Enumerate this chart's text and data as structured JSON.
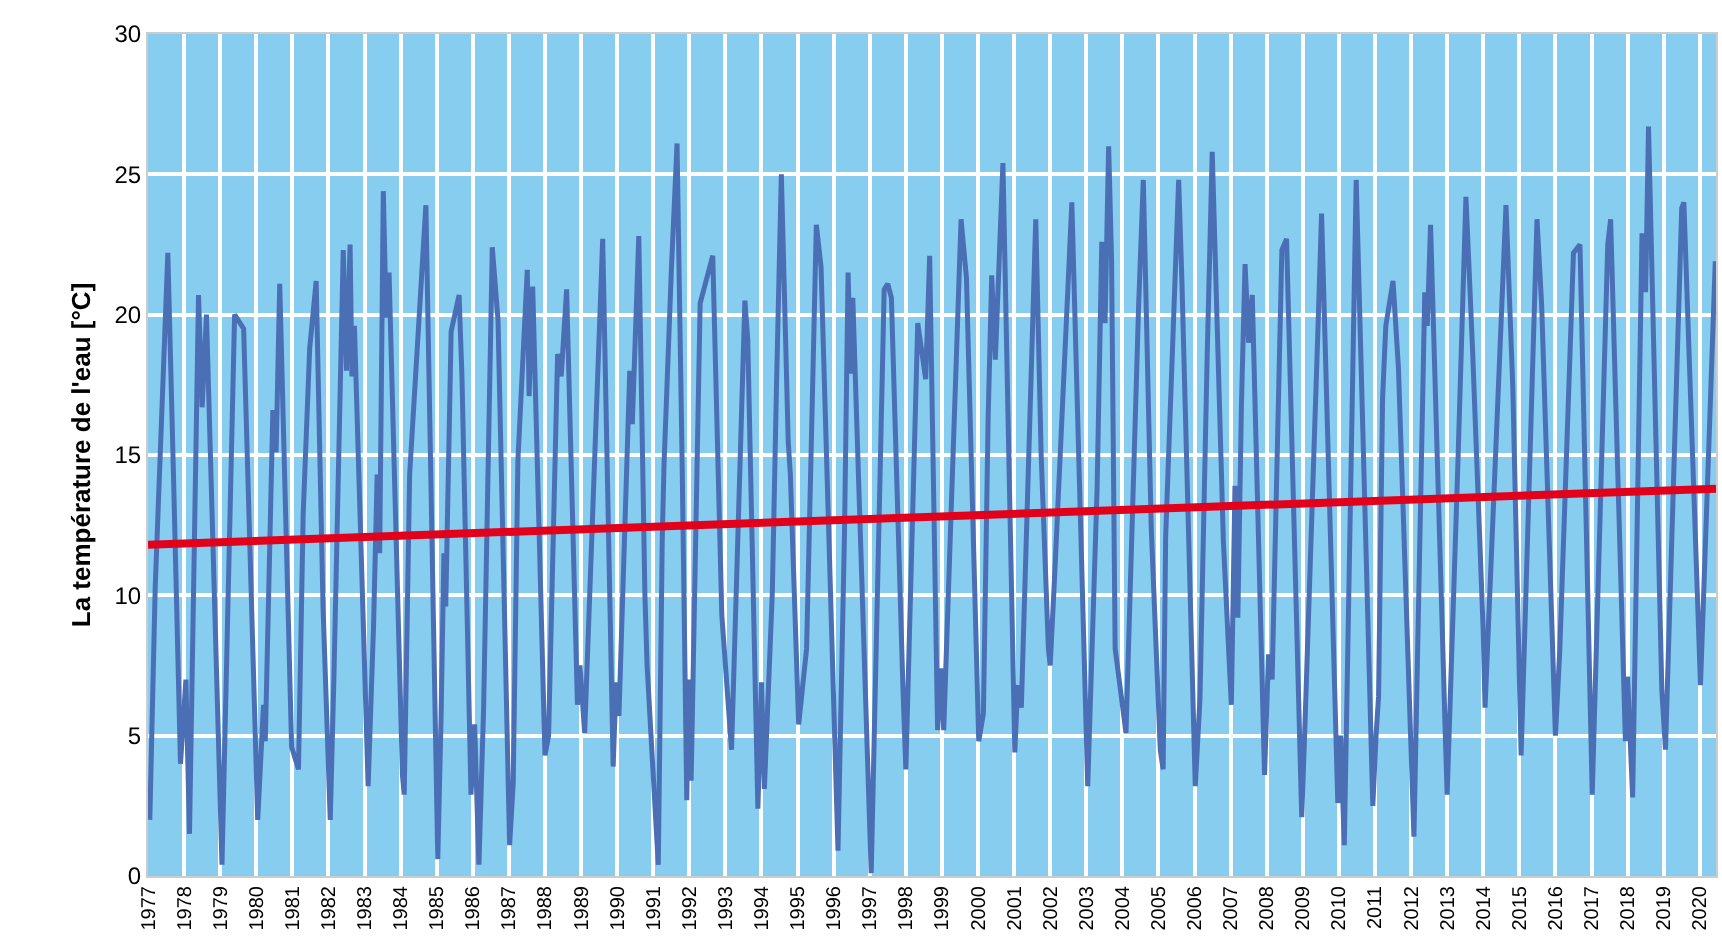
{
  "chart_data": {
    "type": "line",
    "ylabel": "La température de l'eau [°C]",
    "xlim": [
      1977,
      2020.45
    ],
    "xticks": [
      1977,
      1978,
      1979,
      1980,
      1981,
      1982,
      1983,
      1984,
      1985,
      1986,
      1987,
      1988,
      1989,
      1990,
      1991,
      1992,
      1993,
      1994,
      1995,
      1996,
      1997,
      1998,
      1999,
      2000,
      2001,
      2002,
      2003,
      2004,
      2005,
      2006,
      2007,
      2008,
      2009,
      2010,
      2011,
      2012,
      2013,
      2014,
      2015,
      2016,
      2017,
      2018,
      2019,
      2020
    ],
    "ylim": [
      0,
      30
    ],
    "yticks": [
      0,
      5,
      10,
      15,
      20,
      25,
      30
    ],
    "grid": true,
    "marker": "none",
    "line_style": "solid",
    "series": [
      {
        "color": "#4a6fb5",
        "x": [
          1977.05,
          1977.2,
          1977.55,
          1977.7,
          1977.9,
          1978.05,
          1978.15,
          1978.4,
          1978.5,
          1978.62,
          1979.05,
          1979.4,
          1979.65,
          1980.04,
          1980.2,
          1980.25,
          1980.46,
          1980.55,
          1980.65,
          1980.98,
          1981.17,
          1981.3,
          1981.48,
          1981.66,
          1981.85,
          1982.05,
          1982.15,
          1982.41,
          1982.5,
          1982.6,
          1982.65,
          1982.72,
          1983.1,
          1983.25,
          1983.35,
          1983.42,
          1983.52,
          1983.6,
          1983.68,
          1984.05,
          1984.1,
          1984.25,
          1984.7,
          1985.03,
          1985.12,
          1985.2,
          1985.25,
          1985.4,
          1985.62,
          1985.7,
          1985.95,
          1986.05,
          1986.17,
          1986.3,
          1986.54,
          1986.7,
          1987.02,
          1987.12,
          1987.25,
          1987.51,
          1987.56,
          1987.66,
          1988.0,
          1988.1,
          1988.35,
          1988.45,
          1988.6,
          1988.9,
          1988.97,
          1989.1,
          1989.6,
          1989.89,
          1989.97,
          1990.05,
          1990.35,
          1990.42,
          1990.6,
          1990.77,
          1990.83,
          1991.14,
          1991.25,
          1991.3,
          1991.5,
          1991.66,
          1991.8,
          1991.93,
          1991.98,
          1992.05,
          1992.3,
          1992.65,
          1992.9,
          1993.17,
          1993.54,
          1993.62,
          1993.9,
          1994.0,
          1994.08,
          1994.3,
          1994.42,
          1994.55,
          1994.74,
          1994.8,
          1995.03,
          1995.25,
          1995.52,
          1995.65,
          1996.12,
          1996.3,
          1996.4,
          1996.47,
          1996.53,
          1997.04,
          1997.4,
          1997.5,
          1997.6,
          1997.92,
          1998.0,
          1998.33,
          1998.55,
          1998.66,
          1998.88,
          1998.97,
          1999.05,
          1999.53,
          1999.68,
          2000.02,
          2000.15,
          2000.28,
          2000.38,
          2000.48,
          2000.69,
          2001.02,
          2001.1,
          2001.2,
          2001.6,
          2001.75,
          2001.95,
          2002.0,
          2002.12,
          2002.6,
          2003.04,
          2003.3,
          2003.43,
          2003.52,
          2003.62,
          2003.7,
          2003.8,
          2004.1,
          2004.45,
          2004.58,
          2004.8,
          2005.05,
          2005.13,
          2005.2,
          2005.56,
          2005.65,
          2006.02,
          2006.15,
          2006.35,
          2006.49,
          2006.8,
          2007.02,
          2007.12,
          2007.2,
          2007.3,
          2007.4,
          2007.5,
          2007.6,
          2007.94,
          2008.05,
          2008.15,
          2008.42,
          2008.55,
          2008.97,
          2009.05,
          2009.42,
          2009.52,
          2009.97,
          2010.05,
          2010.15,
          2010.48,
          2010.94,
          2011.03,
          2011.1,
          2011.21,
          2011.3,
          2011.5,
          2011.65,
          2012.08,
          2012.38,
          2012.45,
          2012.54,
          2012.95,
          2013.0,
          2013.3,
          2013.52,
          2013.7,
          2014.0,
          2014.05,
          2014.63,
          2014.82,
          2015.05,
          2015.49,
          2015.62,
          2016.0,
          2016.12,
          2016.5,
          2016.68,
          2017.02,
          2017.45,
          2017.53,
          2017.65,
          2017.94,
          2018.0,
          2018.14,
          2018.4,
          2018.5,
          2018.58,
          2018.95,
          2019.05,
          2019.5,
          2019.56,
          2020.02,
          2020.43
        ],
        "values": [
          2.0,
          10.3,
          22.2,
          14.6,
          4.0,
          7.0,
          1.5,
          20.7,
          16.7,
          20.0,
          0.4,
          20.0,
          19.5,
          2.0,
          6.1,
          4.8,
          16.6,
          15.1,
          21.1,
          4.6,
          3.8,
          12.9,
          18.8,
          21.2,
          9.6,
          2.0,
          7.0,
          22.3,
          18.0,
          22.5,
          17.8,
          19.6,
          3.2,
          8.9,
          14.3,
          11.5,
          24.4,
          19.9,
          21.5,
          3.6,
          2.9,
          14.3,
          23.9,
          0.6,
          5.6,
          11.5,
          9.6,
          19.4,
          20.7,
          17.8,
          2.9,
          5.4,
          0.4,
          6.0,
          22.4,
          19.8,
          1.1,
          3.3,
          14.8,
          21.6,
          17.1,
          21.0,
          4.3,
          5.0,
          18.6,
          17.8,
          20.9,
          6.1,
          7.5,
          5.1,
          22.7,
          3.9,
          6.9,
          5.7,
          18.0,
          16.1,
          22.8,
          10.0,
          7.5,
          0.4,
          12.0,
          14.7,
          21.5,
          26.1,
          14.8,
          2.7,
          7.0,
          3.4,
          20.4,
          22.1,
          9.3,
          4.5,
          20.5,
          19.1,
          2.4,
          6.9,
          3.1,
          10.1,
          17.7,
          25.0,
          15.5,
          14.3,
          5.4,
          8.1,
          23.2,
          21.7,
          0.9,
          12.2,
          21.5,
          17.9,
          20.6,
          0.1,
          20.9,
          21.1,
          20.6,
          6.7,
          3.8,
          19.7,
          17.7,
          22.1,
          5.2,
          7.4,
          5.2,
          23.4,
          21.3,
          4.8,
          5.8,
          16.3,
          21.4,
          18.4,
          25.4,
          4.4,
          6.8,
          6.0,
          23.4,
          15.0,
          8.1,
          7.5,
          10.6,
          24.0,
          3.2,
          13.8,
          22.6,
          19.7,
          26.0,
          22.0,
          8.1,
          5.1,
          20.3,
          24.8,
          12.4,
          4.5,
          3.8,
          12.1,
          24.8,
          21.2,
          3.2,
          6.3,
          18.5,
          25.8,
          11.9,
          6.1,
          13.9,
          9.2,
          16.8,
          21.8,
          19.0,
          20.7,
          3.6,
          7.9,
          7.0,
          22.3,
          22.7,
          2.1,
          5.0,
          19.5,
          23.6,
          2.6,
          5.0,
          1.1,
          24.8,
          2.5,
          5.0,
          6.4,
          17.0,
          19.6,
          21.2,
          18.1,
          1.4,
          20.8,
          19.6,
          23.2,
          5.0,
          2.9,
          14.8,
          24.2,
          18.9,
          8.7,
          6.0,
          23.9,
          17.4,
          4.3,
          23.4,
          20.3,
          5.0,
          8.0,
          22.2,
          22.5,
          2.9,
          22.5,
          23.4,
          17.9,
          4.8,
          7.1,
          2.8,
          22.9,
          20.8,
          26.7,
          6.6,
          4.5,
          23.8,
          24.0,
          6.8,
          21.9
        ]
      },
      {
        "color": "#e3001b",
        "x": [
          1977,
          2020.45
        ],
        "values": [
          11.8,
          13.8
        ]
      }
    ]
  }
}
